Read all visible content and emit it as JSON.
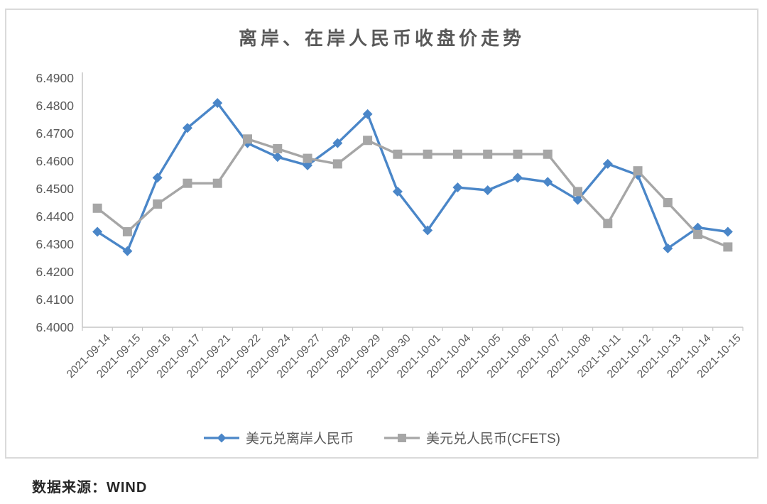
{
  "chart": {
    "source_note": "数据来源：WIND",
    "colors": {
      "offshore_blue": "#4a86c8",
      "onshore_gray": "#a6a6a6",
      "axis_line": "#c6c6c6",
      "tick_label": "#595959",
      "title_text": "#595959",
      "panel_border": "#dadada"
    }
  },
  "chart_data": {
    "type": "line",
    "title": "离岸、在岸人民币收盘价走势",
    "xlabel": "",
    "ylabel": "",
    "ylim": [
      6.4,
      6.49
    ],
    "ytick_step": 0.01,
    "grid": false,
    "legend_position": "bottom",
    "yticks": [
      "6.4900",
      "6.4800",
      "6.4700",
      "6.4600",
      "6.4500",
      "6.4400",
      "6.4300",
      "6.4200",
      "6.4100",
      "6.4000"
    ],
    "categories": [
      "2021-09-14",
      "2021-09-15",
      "2021-09-16",
      "2021-09-17",
      "2021-09-21",
      "2021-09-22",
      "2021-09-24",
      "2021-09-27",
      "2021-09-28",
      "2021-09-29",
      "2021-09-30",
      "2021-10-01",
      "2021-10-04",
      "2021-10-05",
      "2021-10-06",
      "2021-10-07",
      "2021-10-08",
      "2021-10-11",
      "2021-10-12",
      "2021-10-13",
      "2021-10-14",
      "2021-10-15"
    ],
    "series": [
      {
        "name": "美元兑离岸人民币",
        "marker": "diamond",
        "color": "#4a86c8",
        "values": [
          6.4345,
          6.4275,
          6.454,
          6.472,
          6.481,
          6.4665,
          6.4615,
          6.4585,
          6.4665,
          6.477,
          6.449,
          6.435,
          6.4505,
          6.4495,
          6.454,
          6.4525,
          6.446,
          6.459,
          6.455,
          6.4285,
          6.436,
          6.4345
        ]
      },
      {
        "name": "美元兑人民币(CFETS)",
        "marker": "square",
        "color": "#a6a6a6",
        "values": [
          6.443,
          6.4345,
          6.4445,
          6.452,
          6.452,
          6.468,
          6.4645,
          6.461,
          6.459,
          6.4675,
          6.4625,
          6.4625,
          6.4625,
          6.4625,
          6.4625,
          6.4625,
          6.449,
          6.4375,
          6.4565,
          6.445,
          6.4335,
          6.429
        ]
      }
    ]
  }
}
